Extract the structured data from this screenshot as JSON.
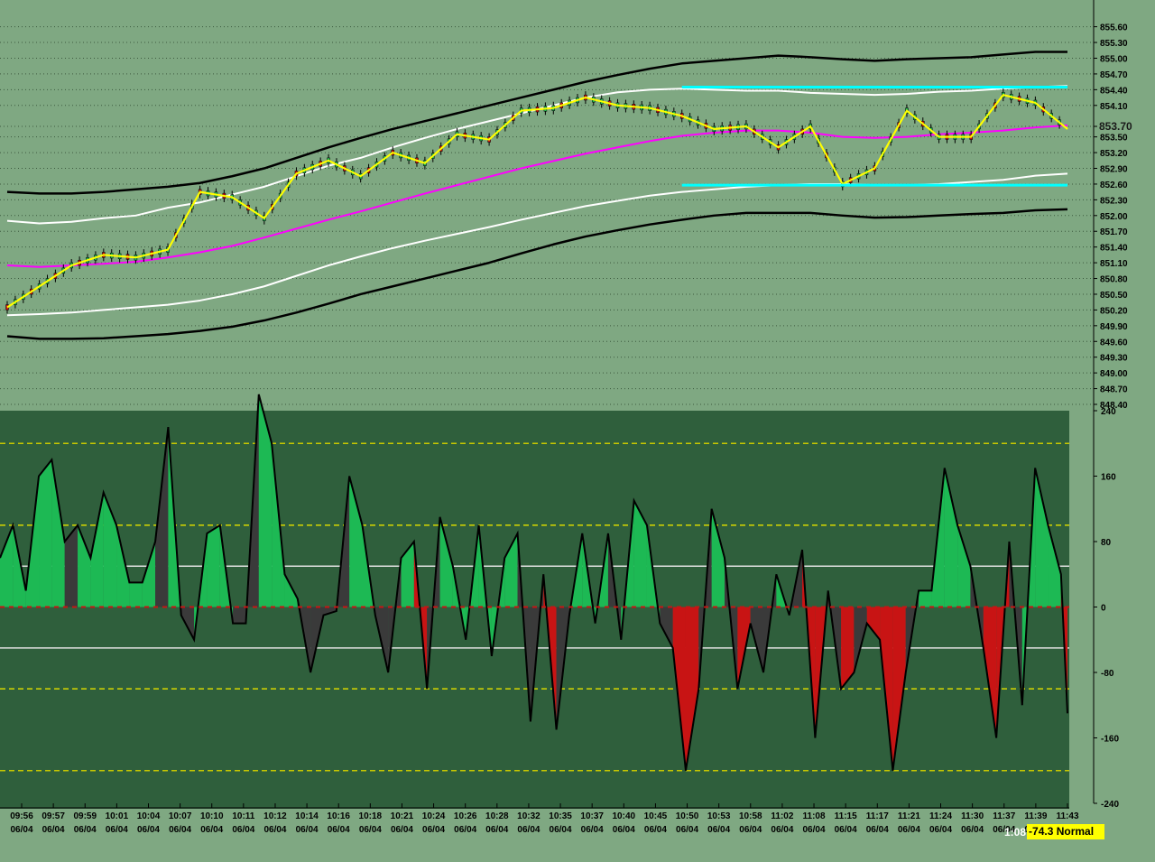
{
  "chart_data": [
    {
      "type": "line",
      "title": "",
      "instrument_panel": "price",
      "ylim": [
        848.4,
        855.8
      ],
      "y_ticks": [
        "855.60",
        "855.30",
        "855.00",
        "854.70",
        "854.40",
        "854.10",
        "853.70",
        "853.50",
        "853.20",
        "852.90",
        "852.60",
        "852.30",
        "852.00",
        "851.70",
        "851.40",
        "851.10",
        "850.80",
        "850.50",
        "850.20",
        "849.90",
        "849.60",
        "849.30",
        "849.00",
        "848.70",
        "848.40"
      ],
      "current_price": "853.70",
      "x_time_labels": [
        "09:56",
        "09:57",
        "09:59",
        "10:01",
        "10:04",
        "10:07",
        "10:10",
        "10:11",
        "10:12",
        "10:14",
        "10:16",
        "10:18",
        "10:21",
        "10:24",
        "10:26",
        "10:28",
        "10:32",
        "10:35",
        "10:37",
        "10:40",
        "10:45",
        "10:50",
        "10:53",
        "10:58",
        "11:02",
        "11:08",
        "11:15",
        "11:17",
        "11:21",
        "11:24",
        "11:30",
        "11:37",
        "11:39",
        "11:43"
      ],
      "x_date_labels": [
        "06/04",
        "06/04",
        "06/04",
        "06/04",
        "06/04",
        "06/04",
        "06/04",
        "06/04",
        "06/04",
        "06/04",
        "06/04",
        "06/04",
        "06/04",
        "06/04",
        "06/04",
        "06/04",
        "06/04",
        "06/04",
        "06/04",
        "06/04",
        "06/04",
        "06/04",
        "06/04",
        "06/04",
        "06/04",
        "06/04",
        "06/04",
        "06/04",
        "06/04",
        "06/04",
        "06/04",
        "06/04",
        "06/04",
        "06/04"
      ],
      "bar_count": 34,
      "series": [
        {
          "role": "price-smooth",
          "color": "#ffff00",
          "values": [
            850.25,
            850.65,
            851.05,
            851.25,
            851.2,
            851.35,
            852.45,
            852.35,
            851.95,
            852.8,
            853.05,
            852.75,
            853.2,
            853.0,
            853.55,
            853.45,
            854.0,
            854.05,
            854.25,
            854.1,
            854.05,
            853.9,
            853.65,
            853.7,
            853.3,
            853.7,
            852.6,
            852.9,
            854.0,
            853.5,
            853.5,
            854.3,
            854.15,
            853.65
          ]
        },
        {
          "role": "moving-average",
          "color": "#ff00ff",
          "values": [
            851.05,
            851.02,
            851.05,
            851.08,
            851.12,
            851.2,
            851.3,
            851.42,
            851.58,
            851.75,
            851.92,
            852.08,
            852.25,
            852.42,
            852.58,
            852.74,
            852.9,
            853.04,
            853.18,
            853.3,
            853.42,
            853.52,
            853.58,
            853.62,
            853.62,
            853.58,
            853.5,
            853.48,
            853.5,
            853.55,
            853.58,
            853.62,
            853.68,
            853.72
          ]
        },
        {
          "role": "inner-band-upper",
          "color": "#ffffff",
          "values": [
            851.9,
            851.85,
            851.88,
            851.95,
            852.0,
            852.15,
            852.25,
            852.4,
            852.55,
            852.75,
            852.95,
            853.1,
            853.3,
            853.48,
            853.65,
            853.8,
            853.95,
            854.1,
            854.25,
            854.35,
            854.4,
            854.42,
            854.4,
            854.38,
            854.38,
            854.34,
            854.32,
            854.3,
            854.32,
            854.36,
            854.38,
            854.42,
            854.45,
            854.47
          ]
        },
        {
          "role": "inner-band-lower",
          "color": "#ffffff",
          "values": [
            850.1,
            850.12,
            850.15,
            850.2,
            850.25,
            850.3,
            850.38,
            850.5,
            850.65,
            850.85,
            851.05,
            851.22,
            851.38,
            851.52,
            851.65,
            851.78,
            851.92,
            852.05,
            852.18,
            852.28,
            852.38,
            852.45,
            852.5,
            852.55,
            852.58,
            852.6,
            852.6,
            852.58,
            852.58,
            852.6,
            852.64,
            852.68,
            852.76,
            852.8
          ]
        },
        {
          "role": "outer-band-upper",
          "color": "#000000",
          "values": [
            852.45,
            852.42,
            852.42,
            852.45,
            852.5,
            852.55,
            852.62,
            852.75,
            852.9,
            853.1,
            853.3,
            853.48,
            853.65,
            853.8,
            853.95,
            854.1,
            854.25,
            854.4,
            854.55,
            854.68,
            854.8,
            854.9,
            854.95,
            855.0,
            855.05,
            855.02,
            854.98,
            854.95,
            854.98,
            855.0,
            855.02,
            855.07,
            855.12,
            855.12
          ]
        },
        {
          "role": "outer-band-lower",
          "color": "#000000",
          "values": [
            849.7,
            849.65,
            849.65,
            849.66,
            849.7,
            849.74,
            849.8,
            849.88,
            850.0,
            850.15,
            850.32,
            850.5,
            850.65,
            850.8,
            850.95,
            851.1,
            851.28,
            851.45,
            851.6,
            851.72,
            851.83,
            851.92,
            852.0,
            852.05,
            852.05,
            852.05,
            852.0,
            851.96,
            851.97,
            852.0,
            852.03,
            852.05,
            852.1,
            852.12
          ]
        }
      ],
      "horizontal_levels": [
        {
          "value": 854.45,
          "color": "#00ffff",
          "from_bar": 21.0,
          "to_bar": 33.0
        },
        {
          "value": 852.58,
          "color": "#00ffff",
          "from_bar": 21.0,
          "to_bar": 33.0
        }
      ]
    },
    {
      "type": "area",
      "title": "",
      "instrument_panel": "oscillator",
      "ylim": [
        -240,
        240
      ],
      "y_ticks": [
        240,
        160,
        80,
        0,
        -80,
        -160,
        -240
      ],
      "reference_lines": [
        200,
        100,
        50,
        -50,
        -100,
        -200
      ],
      "fill_colors": {
        "positive": "#1db954",
        "negative": "#c81414",
        "neutral": "#3a3a3a",
        "signal": "#d9c24a"
      },
      "x": [
        0,
        0.4,
        0.8,
        1.2,
        1.6,
        2.0,
        2.4,
        2.8,
        3.2,
        3.6,
        4.0,
        4.4,
        4.8,
        5.2,
        5.6,
        6.0,
        6.4,
        6.8,
        7.2,
        7.6,
        8.0,
        8.4,
        8.8,
        9.2,
        9.6,
        10.0,
        10.4,
        10.8,
        11.2,
        11.6,
        12.0,
        12.4,
        12.8,
        13.2,
        13.6,
        14.0,
        14.4,
        14.8,
        15.2,
        15.6,
        16.0,
        16.4,
        16.8,
        17.2,
        17.6,
        18.0,
        18.4,
        18.8,
        19.2,
        19.6,
        20.0,
        20.4,
        20.8,
        21.2,
        21.6,
        22.0,
        22.4,
        22.8,
        23.2,
        23.6,
        24.0,
        24.4,
        24.8,
        25.2,
        25.6,
        26.0,
        26.4,
        26.8,
        27.2,
        27.6,
        28.0,
        28.4,
        28.8,
        29.2,
        29.6,
        30.0,
        30.4,
        30.8,
        31.2,
        31.6,
        32.0,
        32.4,
        32.8,
        33.0
      ],
      "values": [
        60,
        100,
        20,
        160,
        180,
        80,
        100,
        60,
        140,
        100,
        30,
        30,
        80,
        220,
        -10,
        -40,
        90,
        100,
        -20,
        -20,
        260,
        200,
        40,
        10,
        -80,
        -10,
        -5,
        160,
        100,
        -10,
        -80,
        60,
        80,
        -100,
        110,
        50,
        -40,
        100,
        -60,
        60,
        90,
        -140,
        40,
        -150,
        -10,
        90,
        -20,
        90,
        -40,
        130,
        100,
        -20,
        -50,
        -200,
        -100,
        120,
        60,
        -100,
        -20,
        -80,
        40,
        -10,
        70,
        -160,
        20,
        -100,
        -80,
        -20,
        -40,
        -200,
        -80,
        20,
        20,
        170,
        100,
        50,
        -50,
        -160,
        80,
        -120,
        170,
        100,
        40,
        -130
      ]
    }
  ],
  "status": {
    "time": "1:08",
    "value_text": "-74.3 Normal"
  }
}
